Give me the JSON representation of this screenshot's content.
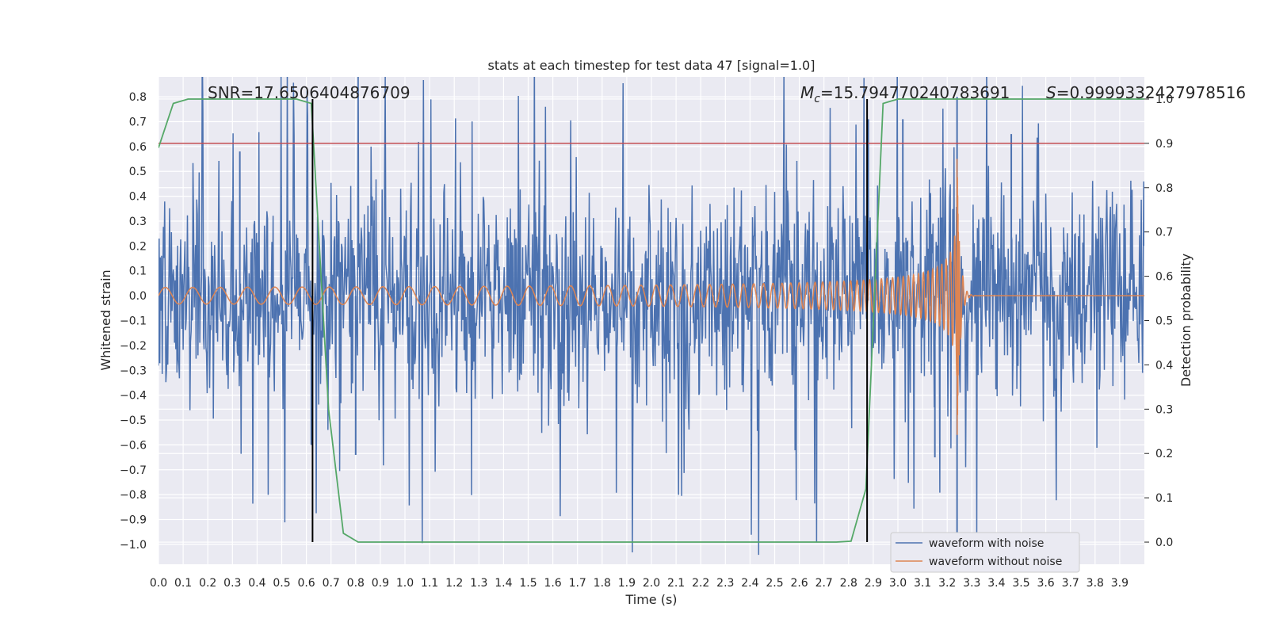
{
  "chart_data": {
    "type": "line",
    "title": "stats at each timestep for test data 47 [signal=1.0]",
    "xlabel": "Time (s)",
    "ylabel": "Whitened strain",
    "y2label": "Detection probability",
    "xlim": [
      0.0,
      4.0
    ],
    "ylim": [
      -1.08,
      0.88
    ],
    "y2lim": [
      -0.05,
      1.05
    ],
    "grid": true,
    "legend_position": "lower-right",
    "x_ticks": [
      "0.0",
      "0.1",
      "0.2",
      "0.3",
      "0.4",
      "0.5",
      "0.6",
      "0.7",
      "0.8",
      "0.9",
      "1.0",
      "1.1",
      "1.2",
      "1.3",
      "1.4",
      "1.5",
      "1.6",
      "1.7",
      "1.8",
      "1.9",
      "2.0",
      "2.1",
      "2.2",
      "2.3",
      "2.4",
      "2.5",
      "2.6",
      "2.7",
      "2.8",
      "2.9",
      "3.0",
      "3.1",
      "3.2",
      "3.3",
      "3.4",
      "3.5",
      "3.6",
      "3.7",
      "3.8",
      "3.9"
    ],
    "y_ticks": [
      "0.8",
      "0.7",
      "0.6",
      "0.5",
      "0.4",
      "0.3",
      "0.2",
      "0.1",
      "0.0",
      "−0.1",
      "−0.2",
      "−0.3",
      "−0.4",
      "−0.5",
      "−0.6",
      "−0.7",
      "−0.8",
      "−0.9",
      "−1.0"
    ],
    "y2_ticks": [
      "1.0",
      "0.9",
      "0.8",
      "0.7",
      "0.6",
      "0.5",
      "0.4",
      "0.3",
      "0.2",
      "0.1",
      "0.0"
    ],
    "annotations": {
      "snr": "SNR=17.6506404876709",
      "mc_symbol": "M",
      "mc_sub": "c",
      "mc_value": "=15.794770240783691",
      "s_symbol": "S",
      "s_value": "=0.9999332427978516"
    },
    "threshold": {
      "y2": 0.9,
      "color": "#c44e52"
    },
    "vertical_lines": [
      0.625,
      2.875
    ],
    "series": [
      {
        "name": "waveform with noise",
        "axis": "left",
        "color": "#4c72b0",
        "kind": "noise",
        "typical_range": [
          -0.55,
          0.55
        ],
        "extremes": [
          {
            "x": 0.33,
            "y": 0.58
          },
          {
            "x": 0.62,
            "y": -0.6
          },
          {
            "x": 0.8,
            "y": -0.64
          },
          {
            "x": 2.88,
            "y": 0.71
          },
          {
            "x": 3.02,
            "y": 0.71
          },
          {
            "x": 3.24,
            "y": 0.8
          },
          {
            "x": 3.24,
            "y": -0.97
          },
          {
            "x": 3.15,
            "y": -0.65
          },
          {
            "x": 3.46,
            "y": 0.65
          }
        ]
      },
      {
        "name": "waveform without noise",
        "axis": "left",
        "color": "#dd8452",
        "kind": "chirp",
        "merger_time": 3.25,
        "start_amplitude": 0.02,
        "peak_amplitude": 0.55,
        "peak_min": -0.6,
        "start_frequency": 9.0,
        "end_frequency": 60.0
      },
      {
        "name": "detection probability",
        "axis": "right",
        "color": "#55a868",
        "x": [
          0.0,
          0.06,
          0.12,
          0.2,
          0.56,
          0.62,
          0.69,
          0.75,
          0.81,
          2.75,
          2.81,
          2.87,
          2.94,
          3.0,
          4.0
        ],
        "values": [
          0.89,
          0.99,
          1.0,
          1.0,
          1.0,
          0.99,
          0.3,
          0.02,
          0.0,
          0.0,
          0.002,
          0.12,
          0.99,
          1.0,
          1.0
        ]
      }
    ]
  }
}
